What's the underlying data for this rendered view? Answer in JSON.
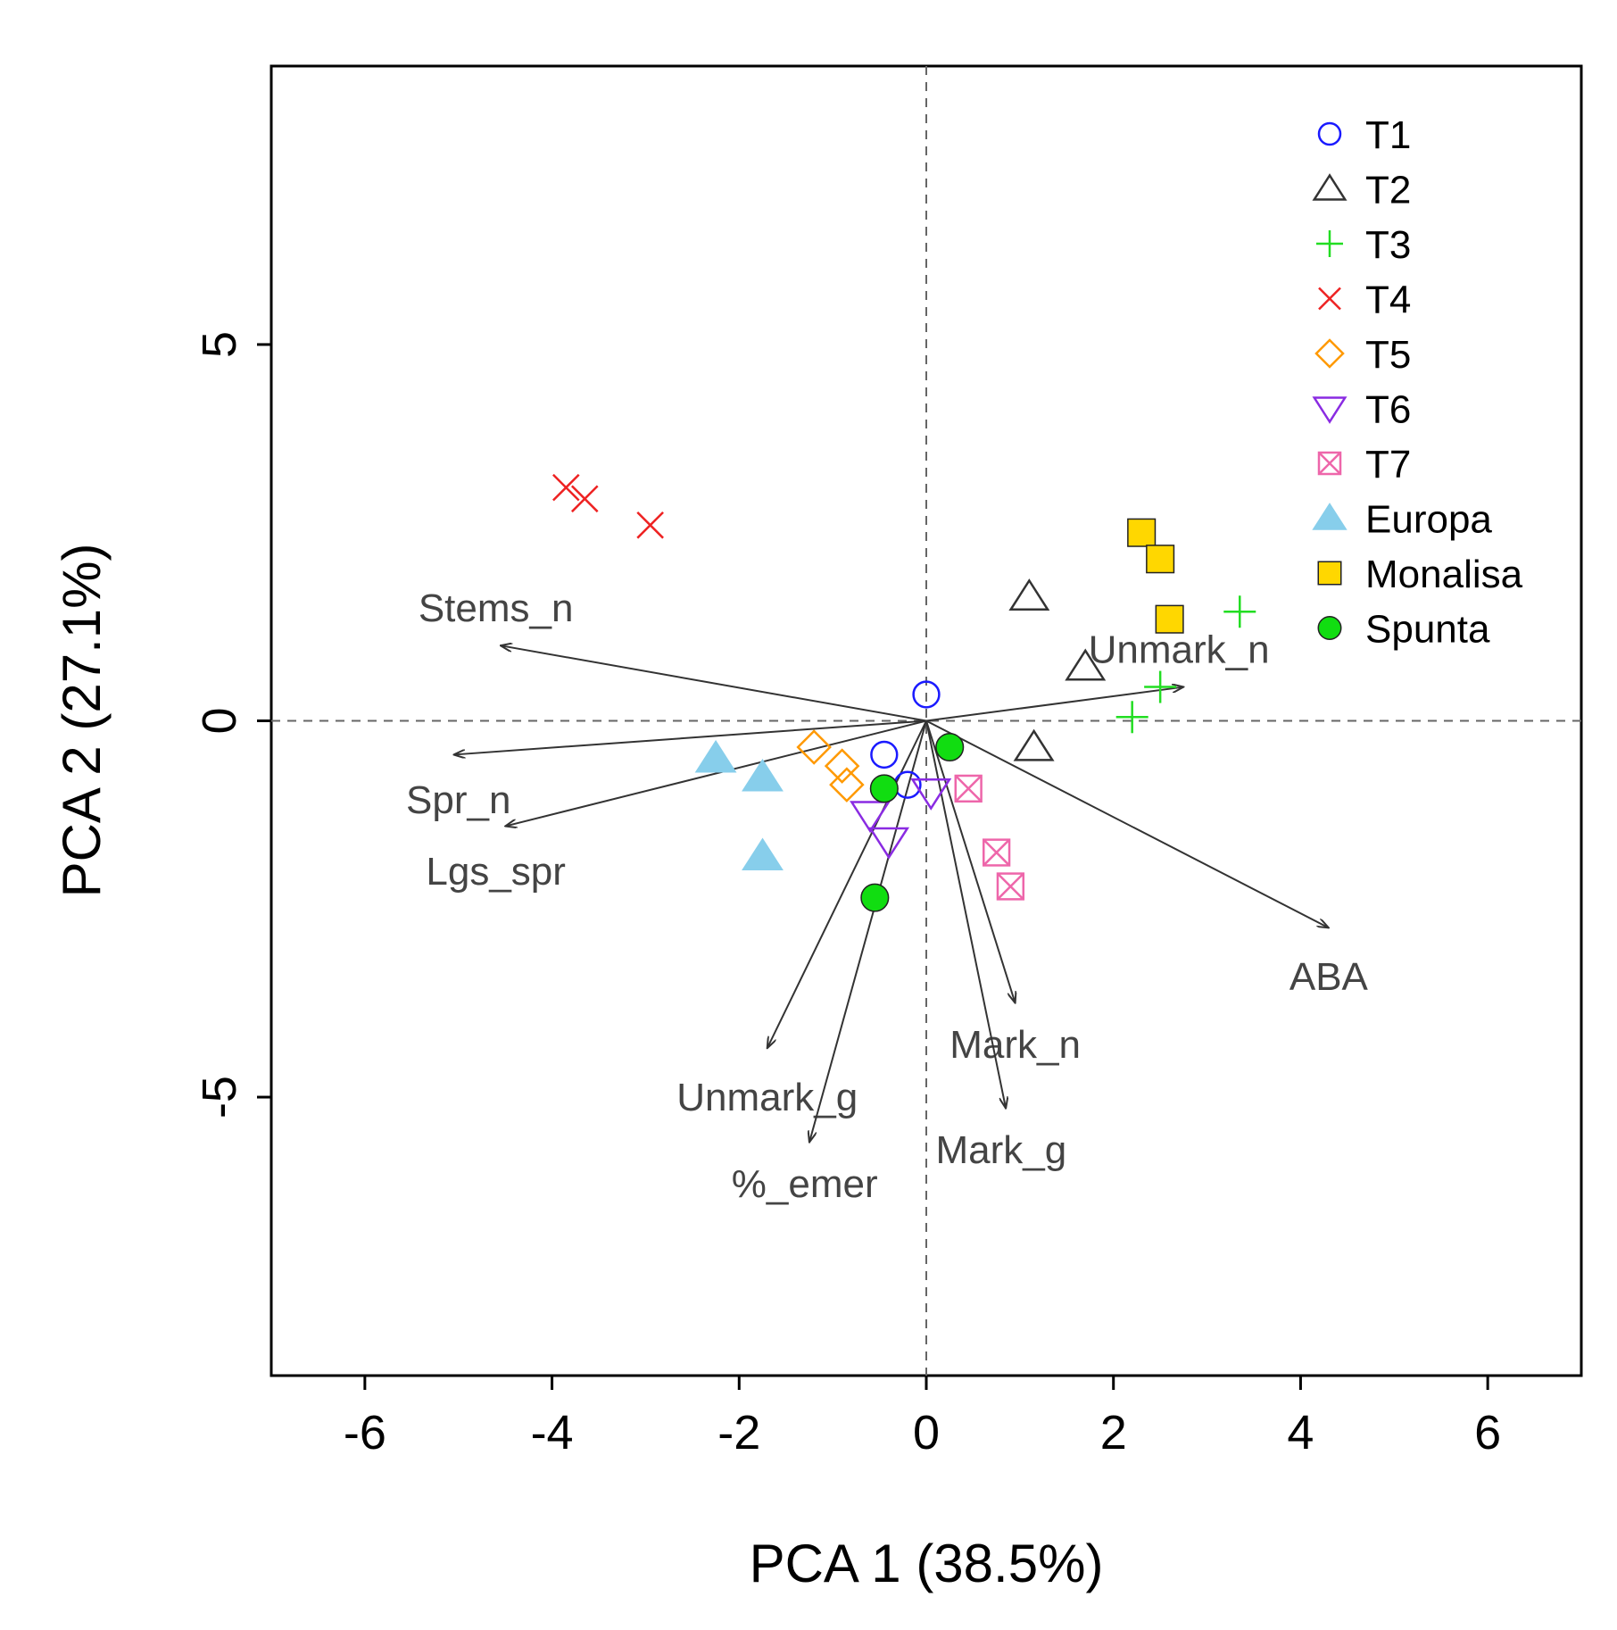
{
  "chart_data": {
    "type": "scatter",
    "subtype": "PCA biplot",
    "xlabel": "PCA 1 (38.5%)",
    "ylabel": "PCA 2 (27.1%)",
    "xlim": [
      -7,
      7
    ],
    "ylim": [
      -8.7,
      8.7
    ],
    "xticks": [
      -6,
      -4,
      -2,
      0,
      2,
      4,
      6
    ],
    "yticks": [
      -5,
      0,
      5
    ],
    "reference_lines": {
      "x": 0,
      "y": 0,
      "style": "dashed"
    },
    "legend_position": "top-right",
    "groups": [
      {
        "name": "T1",
        "marker": "circle-open",
        "color": "#1a1aff",
        "points": [
          [
            0.0,
            0.35
          ],
          [
            -0.45,
            -0.45
          ],
          [
            -0.2,
            -0.85
          ]
        ]
      },
      {
        "name": "T2",
        "marker": "triangle-open",
        "color": "#333333",
        "points": [
          [
            1.1,
            1.65
          ],
          [
            1.7,
            0.72
          ],
          [
            1.15,
            -0.35
          ]
        ]
      },
      {
        "name": "T3",
        "marker": "plus",
        "color": "#22dd22",
        "points": [
          [
            3.35,
            1.45
          ],
          [
            2.5,
            0.45
          ],
          [
            2.2,
            0.05
          ]
        ]
      },
      {
        "name": "T4",
        "marker": "x",
        "color": "#ee2222",
        "points": [
          [
            -3.85,
            3.1
          ],
          [
            -3.65,
            2.95
          ],
          [
            -2.95,
            2.6
          ]
        ]
      },
      {
        "name": "T5",
        "marker": "diamond-open",
        "color": "#ff9900",
        "points": [
          [
            -1.2,
            -0.35
          ],
          [
            -0.9,
            -0.6
          ],
          [
            -0.85,
            -0.85
          ]
        ]
      },
      {
        "name": "T6",
        "marker": "triangle-down-open",
        "color": "#8a2be2",
        "points": [
          [
            -0.6,
            -1.25
          ],
          [
            -0.4,
            -1.6
          ],
          [
            0.05,
            -0.95
          ]
        ]
      },
      {
        "name": "T7",
        "marker": "square-x",
        "color": "#ee66aa",
        "points": [
          [
            0.45,
            -0.9
          ],
          [
            0.75,
            -1.75
          ],
          [
            0.9,
            -2.2
          ]
        ]
      },
      {
        "name": "Europa",
        "marker": "triangle-filled",
        "color": "#87ceeb",
        "points": [
          [
            -2.25,
            -0.5
          ],
          [
            -1.75,
            -0.75
          ],
          [
            -1.75,
            -1.8
          ]
        ]
      },
      {
        "name": "Monalisa",
        "marker": "square-filled",
        "color": "#ffd700",
        "points": [
          [
            2.3,
            2.5
          ],
          [
            2.5,
            2.15
          ],
          [
            2.6,
            1.35
          ]
        ]
      },
      {
        "name": "Spunta",
        "marker": "circle-filled",
        "color": "#11dd11",
        "points": [
          [
            0.25,
            -0.35
          ],
          [
            -0.45,
            -0.9
          ],
          [
            -0.55,
            -2.35
          ]
        ]
      }
    ],
    "loadings": [
      {
        "name": "Stems_n",
        "end": [
          -4.55,
          1.0
        ],
        "label_at": [
          -4.6,
          1.5
        ]
      },
      {
        "name": "Spr_n",
        "end": [
          -5.05,
          -0.45
        ],
        "label_at": [
          -5.0,
          -1.05
        ]
      },
      {
        "name": "Lgs_spr",
        "end": [
          -4.5,
          -1.4
        ],
        "label_at": [
          -4.6,
          -2.0
        ]
      },
      {
        "name": "Unmark_n",
        "end": [
          2.75,
          0.45
        ],
        "label_at": [
          2.7,
          0.95
        ]
      },
      {
        "name": "ABA",
        "end": [
          4.3,
          -2.75
        ],
        "label_at": [
          4.3,
          -3.4
        ]
      },
      {
        "name": "Mark_n",
        "end": [
          0.95,
          -3.75
        ],
        "label_at": [
          0.95,
          -4.3
        ]
      },
      {
        "name": "Mark_g",
        "end": [
          0.85,
          -5.15
        ],
        "label_at": [
          0.8,
          -5.7
        ]
      },
      {
        "name": "Unmark_g",
        "end": [
          -1.7,
          -4.35
        ],
        "label_at": [
          -1.7,
          -5.0
        ]
      },
      {
        "name": "%_emer",
        "end": [
          -1.25,
          -5.6
        ],
        "label_at": [
          -1.3,
          -6.15
        ]
      }
    ]
  }
}
